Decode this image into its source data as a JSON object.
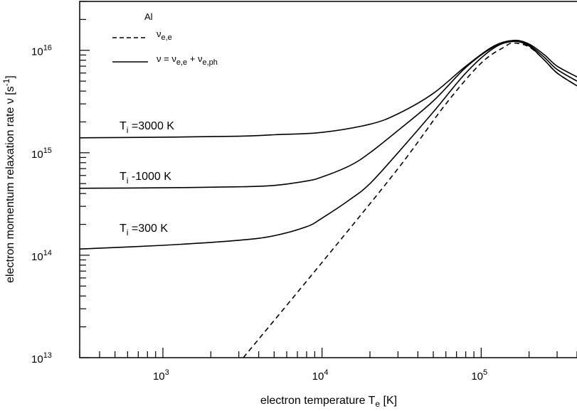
{
  "chart_data": {
    "type": "line",
    "xscale": "log",
    "yscale": "log",
    "xlim": [
      300,
      400000
    ],
    "ylim": [
      10000000000000.0,
      3e+16
    ],
    "xlabel": "electron temperature T",
    "xlabel_sub": "e",
    "xlabel_unit": " [K]",
    "ylabel": "electron momentum relaxation rate ν [s",
    "ylabel_sup": "-1",
    "ylabel_end": "]",
    "x_ticks": [
      {
        "value": 1000,
        "base": "10",
        "exp": "3"
      },
      {
        "value": 10000,
        "base": "10",
        "exp": "4"
      },
      {
        "value": 100000,
        "base": "10",
        "exp": "5"
      }
    ],
    "y_ticks": [
      {
        "value": 10000000000000.0,
        "base": "10",
        "exp": "13"
      },
      {
        "value": 100000000000000.0,
        "base": "10",
        "exp": "14"
      },
      {
        "value": 1000000000000000.0,
        "base": "10",
        "exp": "15"
      },
      {
        "value": 1e+16,
        "base": "10",
        "exp": "16"
      }
    ],
    "legend": {
      "placement": "top-left",
      "title": "Al",
      "entries": [
        {
          "style": "dashed",
          "text": "ν",
          "sub": "e,e"
        },
        {
          "style": "solid",
          "text": "ν = ν",
          "sub": "e,e",
          "text2": " + ν",
          "sub2": "e,ph"
        }
      ]
    },
    "series": [
      {
        "label_prefix": "T",
        "label_sub": "i",
        "label_text": " =3000 K",
        "style": "solid",
        "points": [
          [
            300,
            1400000000000000.0
          ],
          [
            1000,
            1420000000000000.0
          ],
          [
            3000,
            1450000000000000.0
          ],
          [
            5000,
            1500000000000000.0
          ],
          [
            10000,
            1580000000000000.0
          ],
          [
            20000,
            1900000000000000.0
          ],
          [
            30000,
            2400000000000000.0
          ],
          [
            50000,
            3800000000000000.0
          ],
          [
            80000,
            7000000000000000.0
          ],
          [
            120000,
            1.1e+16
          ],
          [
            160000,
            1.25e+16
          ],
          [
            200000,
            1.15e+16
          ],
          [
            250000,
            9000000000000000.0
          ],
          [
            300000,
            7000000000000000.0
          ],
          [
            400000,
            5500000000000000.0
          ]
        ]
      },
      {
        "label_prefix": "T",
        "label_sub": "i",
        "label_text": " -1000 K",
        "style": "solid",
        "points": [
          [
            300,
            450000000000000.0
          ],
          [
            1000,
            455000000000000.0
          ],
          [
            3000,
            465000000000000.0
          ],
          [
            5000,
            480000000000000.0
          ],
          [
            8000,
            530000000000000.0
          ],
          [
            10000,
            580000000000000.0
          ],
          [
            15000,
            750000000000000.0
          ],
          [
            20000,
            1000000000000000.0
          ],
          [
            30000,
            1650000000000000.0
          ],
          [
            50000,
            3200000000000000.0
          ],
          [
            80000,
            6800000000000000.0
          ],
          [
            120000,
            1.08e+16
          ],
          [
            160000,
            1.23e+16
          ],
          [
            200000,
            1.12e+16
          ],
          [
            250000,
            8500000000000000.0
          ],
          [
            300000,
            6500000000000000.0
          ],
          [
            400000,
            5000000000000000.0
          ]
        ]
      },
      {
        "label_prefix": "T",
        "label_sub": "i",
        "label_text": " =300 K",
        "style": "solid",
        "points": [
          [
            300,
            115000000000000.0
          ],
          [
            1000,
            125000000000000.0
          ],
          [
            3000,
            140000000000000.0
          ],
          [
            5000,
            155000000000000.0
          ],
          [
            8000,
            190000000000000.0
          ],
          [
            10000,
            230000000000000.0
          ],
          [
            15000,
            350000000000000.0
          ],
          [
            20000,
            500000000000000.0
          ],
          [
            30000,
            1000000000000000.0
          ],
          [
            50000,
            2500000000000000.0
          ],
          [
            80000,
            6000000000000000.0
          ],
          [
            120000,
            1.05e+16
          ],
          [
            160000,
            1.22e+16
          ],
          [
            200000,
            1.1e+16
          ],
          [
            250000,
            8000000000000000.0
          ],
          [
            300000,
            6000000000000000.0
          ],
          [
            400000,
            4500000000000000.0
          ]
        ]
      },
      {
        "name": "ν_e,e",
        "style": "dashed",
        "points": [
          [
            3200,
            10000000000000.0
          ],
          [
            10000,
            85000000000000.0
          ],
          [
            30000,
            700000000000000.0
          ],
          [
            60000,
            3000000000000000.0
          ],
          [
            100000,
            7500000000000000.0
          ],
          [
            140000,
            1.08e+16
          ],
          [
            160000,
            1.18e+16
          ],
          [
            200000,
            1.08e+16
          ],
          [
            250000,
            8000000000000000.0
          ],
          [
            300000,
            6000000000000000.0
          ],
          [
            400000,
            4500000000000000.0
          ]
        ]
      }
    ]
  }
}
